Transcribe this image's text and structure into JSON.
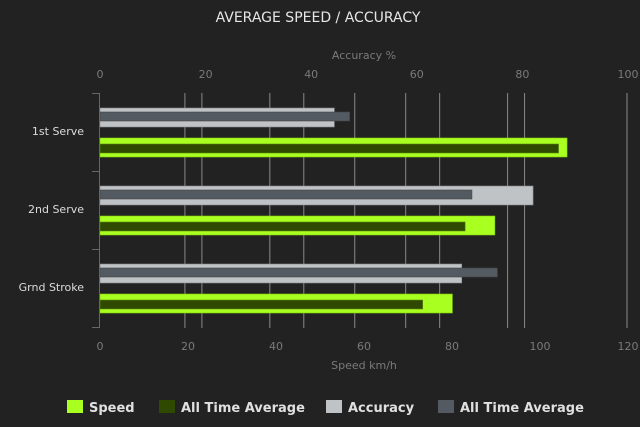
{
  "chart_data": {
    "type": "bar",
    "orientation": "horizontal",
    "title": "AVERAGE SPEED / ACCURACY",
    "categories": [
      "1st Serve",
      "2nd Serve",
      "Grnd Stroke"
    ],
    "x_top": {
      "label": "Accuracy %",
      "range": [
        0,
        100
      ],
      "ticks": [
        0,
        20,
        40,
        60,
        80,
        100
      ]
    },
    "x_bottom": {
      "label": "Speed km/h",
      "range": [
        0,
        120
      ],
      "ticks": [
        0,
        20,
        40,
        60,
        80,
        100,
        120
      ]
    },
    "series": [
      {
        "name": "Speed",
        "axis": "bottom",
        "color": "#a8ff20",
        "values": [
          110,
          93,
          83
        ]
      },
      {
        "name": "All Time Average",
        "axis": "bottom",
        "color": "#2f4a00",
        "values": [
          108,
          86,
          76
        ]
      },
      {
        "name": "Accuracy",
        "axis": "top",
        "color": "#bfc3c6",
        "values": [
          46,
          85,
          71
        ]
      },
      {
        "name": "All Time Average",
        "axis": "top",
        "color": "#545a61",
        "values": [
          49,
          73,
          78
        ]
      }
    ],
    "grid": true,
    "legend": "bottom"
  }
}
